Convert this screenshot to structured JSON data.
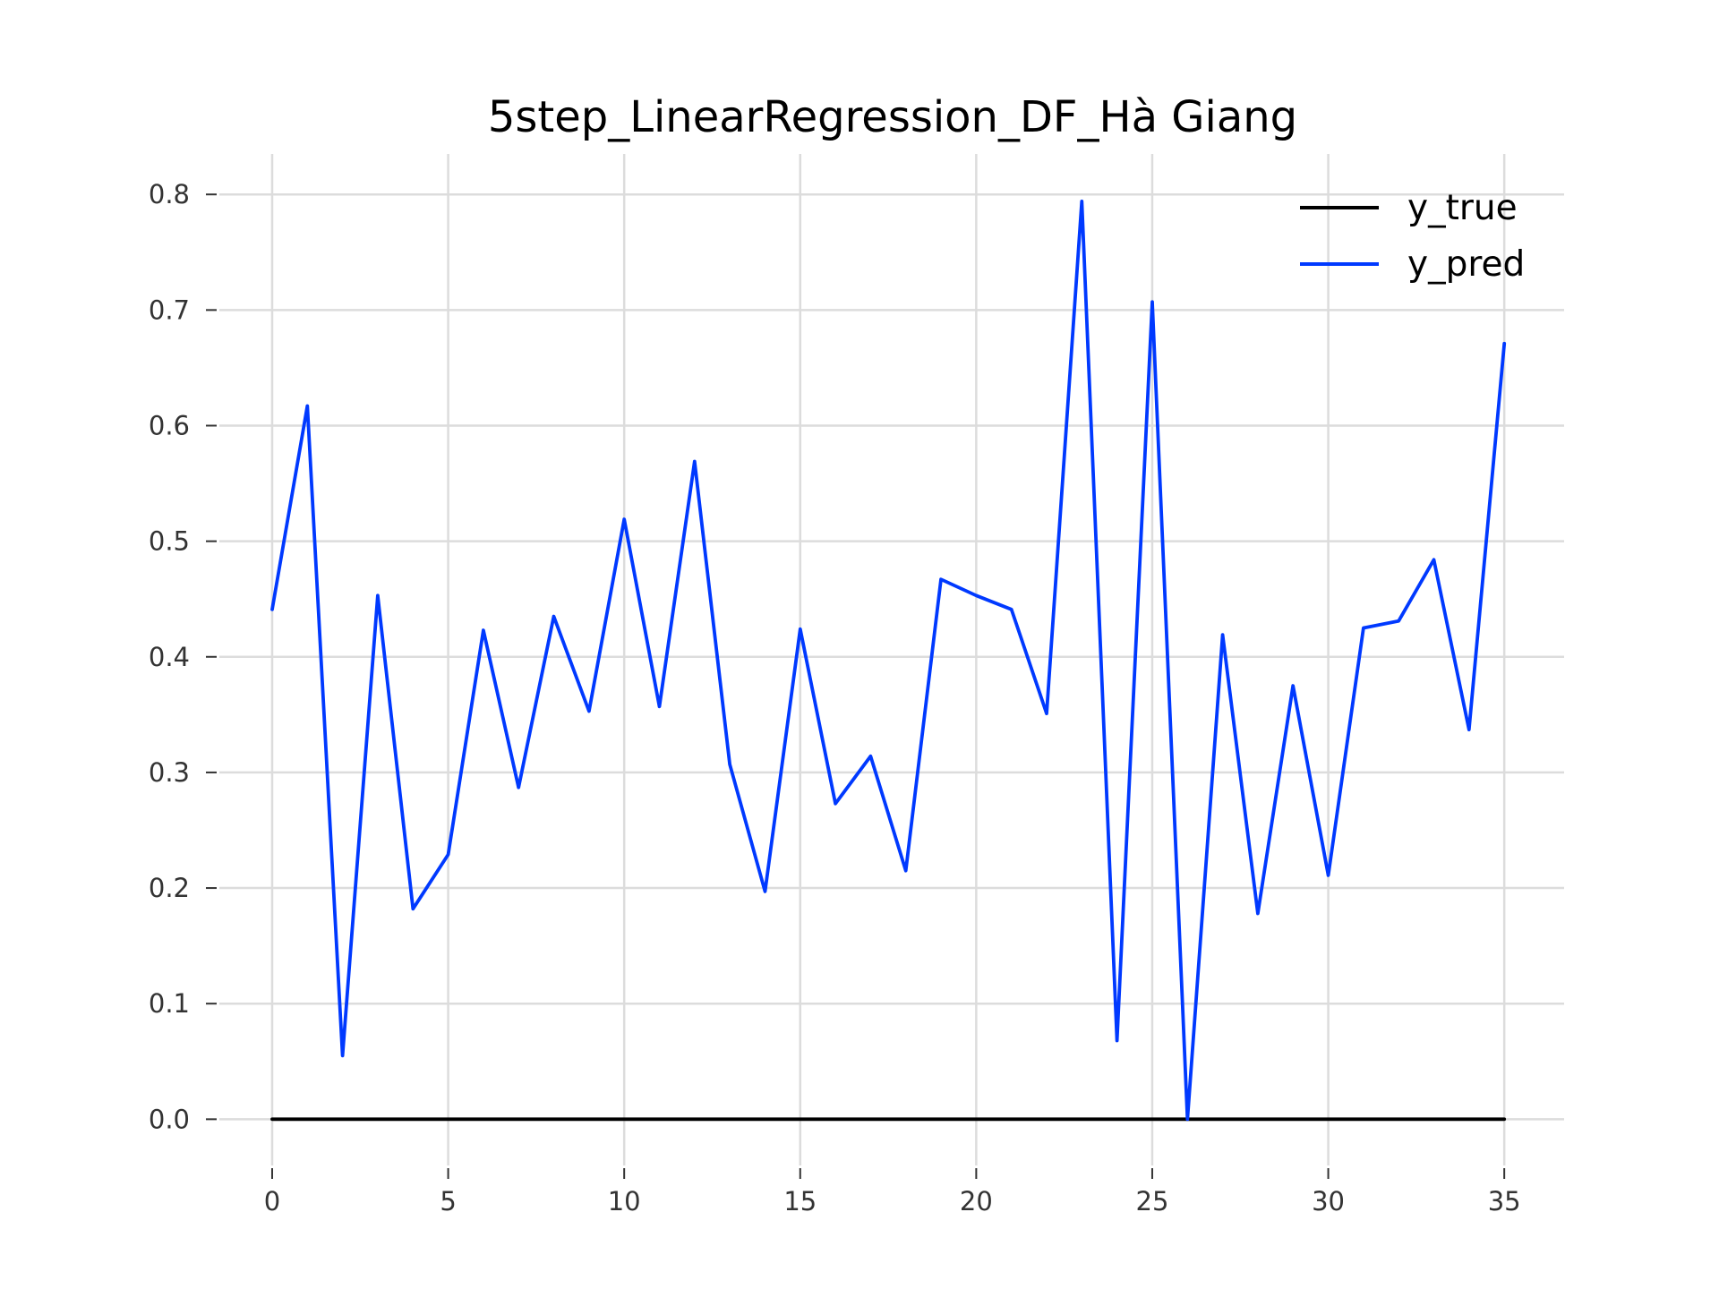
{
  "chart_data": {
    "type": "line",
    "title": "5step_LinearRegression_DF_Hà Giang",
    "xlabel": "",
    "ylabel": "",
    "xlim": [
      -1.5,
      36.7
    ],
    "ylim": [
      -0.04,
      0.835
    ],
    "x_ticks": [
      0,
      5,
      10,
      15,
      20,
      25,
      30,
      35
    ],
    "x_tick_labels": [
      "0",
      "5",
      "10",
      "15",
      "20",
      "25",
      "30",
      "35"
    ],
    "y_ticks": [
      0.0,
      0.1,
      0.2,
      0.3,
      0.4,
      0.5,
      0.6,
      0.7,
      0.8
    ],
    "y_tick_labels": [
      "0.0",
      "0.1",
      "0.2",
      "0.3",
      "0.4",
      "0.5",
      "0.6",
      "0.7",
      "0.8"
    ],
    "grid": true,
    "legend_position": "top-right",
    "x": [
      0,
      1,
      2,
      3,
      4,
      5,
      6,
      7,
      8,
      9,
      10,
      11,
      12,
      13,
      14,
      15,
      16,
      17,
      18,
      19,
      20,
      21,
      22,
      23,
      24,
      25,
      26,
      27,
      28,
      29,
      30,
      31,
      32,
      33,
      34,
      35
    ],
    "series": [
      {
        "name": "y_true",
        "color": "#000000",
        "values": [
          0,
          0,
          0,
          0,
          0,
          0,
          0,
          0,
          0,
          0,
          0,
          0,
          0,
          0,
          0,
          0,
          0,
          0,
          0,
          0,
          0,
          0,
          0,
          0,
          0,
          0,
          0,
          0,
          0,
          0,
          0,
          0,
          0,
          0,
          0,
          0
        ]
      },
      {
        "name": "y_pred",
        "color": "#0039ff",
        "values": [
          0.441,
          0.617,
          0.055,
          0.453,
          0.182,
          0.229,
          0.423,
          0.287,
          0.435,
          0.353,
          0.519,
          0.357,
          0.569,
          0.307,
          0.197,
          0.424,
          0.273,
          0.314,
          0.215,
          0.467,
          0.453,
          0.441,
          0.351,
          0.794,
          0.068,
          0.707,
          0.0,
          0.419,
          0.178,
          0.375,
          0.211,
          0.425,
          0.431,
          0.484,
          0.337,
          0.671
        ]
      }
    ]
  }
}
